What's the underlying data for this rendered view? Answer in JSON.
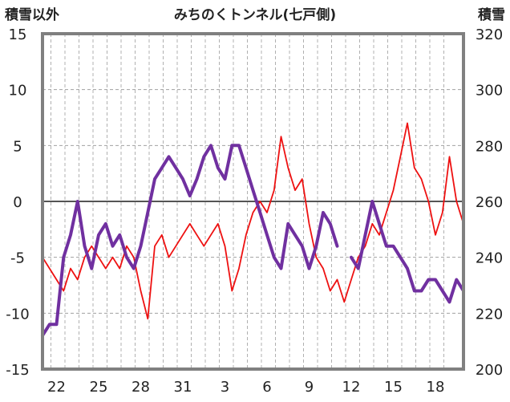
{
  "chart_data": {
    "type": "line",
    "title": "みちのくトンネル(七戸側)",
    "left_axis_label": "積雪以外",
    "right_axis_label": "積雪",
    "y_left": {
      "min": -15,
      "max": 15,
      "ticks": [
        "15",
        "10",
        "5",
        "0",
        "-5",
        "-10",
        "-15"
      ]
    },
    "y_right": {
      "min": 200,
      "max": 320,
      "ticks": [
        "320",
        "300",
        "280",
        "260",
        "240",
        "220",
        "200"
      ]
    },
    "x_ticks": [
      "22",
      "25",
      "28",
      "31",
      "3",
      "6",
      "9",
      "12",
      "15",
      "18"
    ],
    "grid": true,
    "colors": {
      "red_series": "#ee1111",
      "purple_series": "#7030a0",
      "frame": "#808080"
    },
    "series": [
      {
        "color": "#ee1111",
        "axis": "left",
        "x": [
          0,
          0.5,
          1,
          1.5,
          2,
          2.5,
          3,
          3.5,
          4,
          4.5,
          5,
          5.5,
          6,
          6.5,
          7,
          7.5,
          8,
          8.5,
          9,
          9.5,
          10,
          10.5,
          11,
          11.5,
          12,
          12.5,
          13,
          13.5,
          14,
          14.5,
          15,
          15.5,
          16,
          16.5,
          17,
          17.5,
          18,
          18.5,
          19,
          19.5,
          20,
          20.5,
          21,
          21.5,
          22,
          22.5,
          23,
          23.5,
          24,
          24.5,
          25,
          25.5,
          26,
          26.5,
          27,
          27.5,
          28,
          28.5,
          29,
          29.5,
          30
        ],
        "values": [
          -5,
          -6,
          -7,
          -8,
          -6,
          -7,
          -5,
          -4,
          -5,
          -6,
          -5,
          -6,
          -4,
          -5,
          -8,
          -10.5,
          -4,
          -3,
          -5,
          -4,
          -3,
          -2,
          -3,
          -4,
          -3,
          -2,
          -4,
          -8,
          -6,
          -3,
          -1,
          0,
          -1,
          1,
          5.8,
          3,
          1,
          2,
          -2,
          -5,
          -6,
          -8,
          -7,
          -9,
          -7,
          -5,
          -4,
          -2,
          -3,
          -1,
          1,
          4,
          7,
          3,
          2,
          0,
          -3,
          -1,
          4,
          0,
          -2
        ]
      },
      {
        "color": "#7030a0",
        "axis": "left",
        "x": [
          0,
          0.5,
          1,
          1.5,
          2,
          2.5,
          3,
          3.5,
          4,
          4.5,
          5,
          5.5,
          6,
          6.5,
          7,
          7.5,
          8,
          8.5,
          9,
          9.5,
          10,
          10.5,
          11,
          11.5,
          12,
          12.5,
          13,
          13.5,
          14,
          14.5,
          15,
          15.5,
          16,
          16.5,
          17,
          17.5,
          18,
          18.5,
          19,
          19.5,
          20,
          20.5,
          21,
          21.5,
          22,
          22.5,
          23,
          23.5,
          24,
          24.5,
          25,
          25.5,
          26,
          26.5,
          27,
          27.5,
          28,
          28.5,
          29,
          29.5,
          30
        ],
        "values": [
          -12,
          -11,
          -11,
          -5,
          -3,
          0,
          -4,
          -6,
          -3,
          -2,
          -4,
          -3,
          -5,
          -6,
          -4,
          -1,
          2,
          3,
          4,
          3,
          2,
          0.5,
          2,
          4,
          5,
          3,
          2,
          5,
          5,
          3,
          1,
          -1,
          -3,
          -5,
          -6,
          -2,
          -3,
          -4,
          -6,
          -4,
          -1,
          -2,
          -4,
          null,
          -5,
          -6,
          -3,
          0,
          -2,
          -4,
          -4,
          -5,
          -6,
          -8,
          -8,
          -7,
          -7,
          -8,
          -9,
          -7,
          -8
        ]
      }
    ]
  }
}
